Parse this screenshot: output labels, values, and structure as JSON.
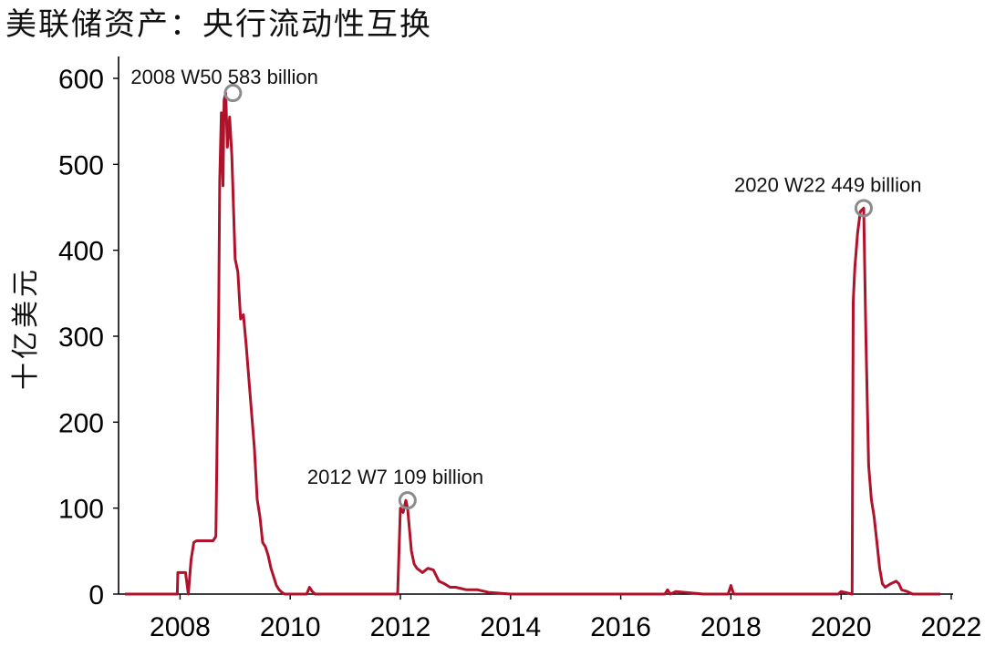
{
  "chart_data": {
    "type": "line",
    "title": "美联储资产：央行流动性互换",
    "xlabel": "",
    "ylabel": "十亿美元",
    "xlim": [
      2007.0,
      2022.0
    ],
    "ylim": [
      0,
      600
    ],
    "x_ticks": [
      2008,
      2010,
      2012,
      2014,
      2016,
      2018,
      2020,
      2022
    ],
    "x_tick_labels": [
      "2008",
      "2010",
      "2012",
      "2014",
      "2016",
      "2018",
      "2020",
      "2022"
    ],
    "y_ticks": [
      0,
      100,
      200,
      300,
      400,
      500,
      600
    ],
    "y_tick_labels": [
      "0",
      "100",
      "200",
      "300",
      "400",
      "500",
      "600"
    ],
    "grid": false,
    "series_color": "#b0122b",
    "series": [
      {
        "x": [
          2007.0,
          2007.95,
          2007.96,
          2008.1,
          2008.15,
          2008.2,
          2008.25,
          2008.3,
          2008.4,
          2008.6,
          2008.65,
          2008.7,
          2008.72,
          2008.75,
          2008.78,
          2008.8,
          2008.83,
          2008.86,
          2008.9,
          2008.94,
          2008.96,
          2009.0,
          2009.05,
          2009.1,
          2009.15,
          2009.2,
          2009.25,
          2009.3,
          2009.35,
          2009.4,
          2009.45,
          2009.5,
          2009.55,
          2009.6,
          2009.65,
          2009.7,
          2009.75,
          2009.8,
          2009.85,
          2009.9,
          2009.95,
          2010.0,
          2010.05,
          2010.3,
          2010.35,
          2010.4,
          2010.45,
          2011.9,
          2011.95,
          2012.0,
          2012.05,
          2012.1,
          2012.13,
          2012.2,
          2012.25,
          2012.3,
          2012.4,
          2012.5,
          2012.6,
          2012.7,
          2012.8,
          2012.9,
          2013.0,
          2013.2,
          2013.4,
          2013.6,
          2014.0,
          2015.0,
          2016.0,
          2016.8,
          2016.85,
          2016.9,
          2017.0,
          2017.5,
          2017.95,
          2018.0,
          2018.05,
          2019.0,
          2019.5,
          2019.95,
          2020.0,
          2020.2,
          2020.22,
          2020.25,
          2020.3,
          2020.35,
          2020.41,
          2020.45,
          2020.5,
          2020.55,
          2020.6,
          2020.65,
          2020.7,
          2020.75,
          2020.8,
          2020.85,
          2020.9,
          2021.0,
          2021.05,
          2021.1,
          2021.2,
          2021.3,
          2021.5,
          2021.8
        ],
        "y": [
          0,
          0,
          25,
          25,
          0,
          40,
          60,
          62,
          62,
          62,
          67,
          320,
          480,
          560,
          475,
          575,
          583,
          520,
          555,
          510,
          470,
          390,
          375,
          320,
          325,
          290,
          250,
          210,
          170,
          110,
          90,
          60,
          55,
          45,
          30,
          20,
          10,
          5,
          2,
          0,
          0,
          0,
          0,
          0,
          8,
          3,
          0,
          0,
          0,
          100,
          95,
          109,
          100,
          50,
          35,
          30,
          25,
          30,
          28,
          15,
          12,
          8,
          8,
          5,
          5,
          2,
          0,
          0,
          0,
          0,
          5,
          0,
          3,
          0,
          0,
          10,
          0,
          0,
          0,
          0,
          3,
          0,
          340,
          380,
          420,
          445,
          449,
          300,
          150,
          110,
          90,
          60,
          30,
          12,
          8,
          10,
          12,
          15,
          12,
          5,
          3,
          0,
          0,
          0
        ]
      }
    ],
    "annotations": [
      {
        "text": "2008 W50 583 billion",
        "x": 2008.96,
        "y": 583
      },
      {
        "text": "2012 W7 109 billion",
        "x": 2012.13,
        "y": 109
      },
      {
        "text": "2020 W22 449 billion",
        "x": 2020.41,
        "y": 449
      }
    ]
  }
}
